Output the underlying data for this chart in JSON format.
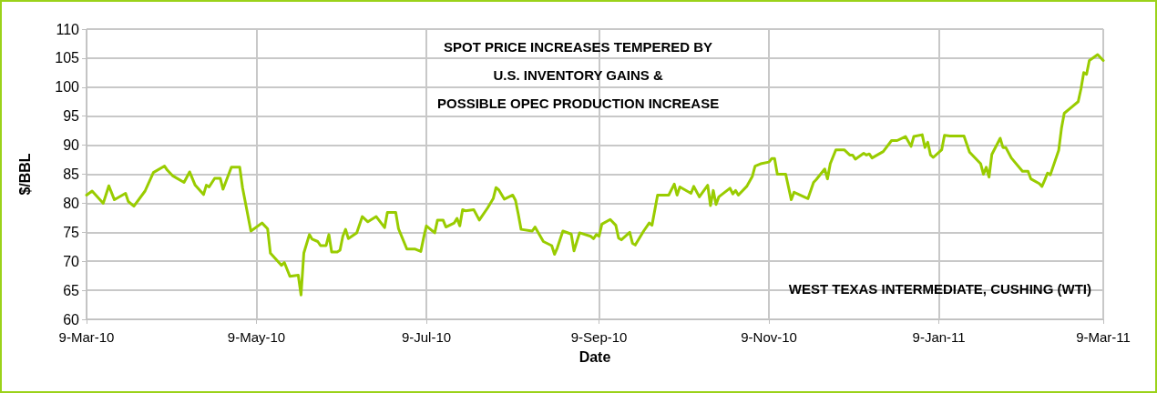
{
  "chart_data": {
    "type": "line",
    "title": "SPOT PRICE INCREASES TEMPERED BY\nU.S. INVENTORY GAINS &\nPOSSIBLE OPEC PRODUCTION INCREASE",
    "xlabel": "Date",
    "ylabel": "$/BBL",
    "annotations": [
      "WEST TEXAS INTERMEDIATE, CUSHING (WTI)"
    ],
    "xlim": [
      "2010-03-09",
      "2011-03-09"
    ],
    "xticks": [
      {
        "value": "2010-03-09",
        "label": "9-Mar-10"
      },
      {
        "value": "2010-05-09",
        "label": "9-May-10"
      },
      {
        "value": "2010-07-09",
        "label": "9-Jul-10"
      },
      {
        "value": "2010-09-09",
        "label": "9-Sep-10"
      },
      {
        "value": "2010-11-09",
        "label": "9-Nov-10"
      },
      {
        "value": "2011-01-09",
        "label": "9-Jan-11"
      },
      {
        "value": "2011-03-09",
        "label": "9-Mar-11"
      }
    ],
    "ylim": [
      60,
      110
    ],
    "yticks": [
      60,
      65,
      70,
      75,
      80,
      85,
      90,
      95,
      100,
      105,
      110
    ],
    "grid": true,
    "marker": "none",
    "line_style": "solid",
    "x": [
      "2010-03-09",
      "2010-03-11",
      "2010-03-15",
      "2010-03-17",
      "2010-03-19",
      "2010-03-23",
      "2010-03-24",
      "2010-03-26",
      "2010-03-30",
      "2010-04-02",
      "2010-04-06",
      "2010-04-07",
      "2010-04-09",
      "2010-04-13",
      "2010-04-15",
      "2010-04-17",
      "2010-04-20",
      "2010-04-21",
      "2010-04-22",
      "2010-04-24",
      "2010-04-26",
      "2010-04-27",
      "2010-04-30",
      "2010-05-03",
      "2010-05-04",
      "2010-05-07",
      "2010-05-11",
      "2010-05-13",
      "2010-05-14",
      "2010-05-18",
      "2010-05-19",
      "2010-05-21",
      "2010-05-24",
      "2010-05-25",
      "2010-05-26",
      "2010-05-28",
      "2010-05-29",
      "2010-05-31",
      "2010-06-01",
      "2010-06-03",
      "2010-06-04",
      "2010-06-05",
      "2010-06-07",
      "2010-06-08",
      "2010-06-09",
      "2010-06-10",
      "2010-06-11",
      "2010-06-14",
      "2010-06-16",
      "2010-06-18",
      "2010-06-21",
      "2010-06-24",
      "2010-06-25",
      "2010-06-28",
      "2010-06-29",
      "2010-07-02",
      "2010-07-05",
      "2010-07-07",
      "2010-07-08",
      "2010-07-09",
      "2010-07-12",
      "2010-07-13",
      "2010-07-15",
      "2010-07-16",
      "2010-07-19",
      "2010-07-20",
      "2010-07-21",
      "2010-07-22",
      "2010-07-23",
      "2010-07-26",
      "2010-07-28",
      "2010-07-31",
      "2010-08-02",
      "2010-08-03",
      "2010-08-04",
      "2010-08-06",
      "2010-08-09",
      "2010-08-10",
      "2010-08-11",
      "2010-08-12",
      "2010-08-16",
      "2010-08-17",
      "2010-08-20",
      "2010-08-23",
      "2010-08-24",
      "2010-08-25",
      "2010-08-27",
      "2010-08-30",
      "2010-08-31",
      "2010-09-02",
      "2010-09-06",
      "2010-09-07",
      "2010-09-08",
      "2010-09-09",
      "2010-09-10",
      "2010-09-13",
      "2010-09-15",
      "2010-09-16",
      "2010-09-17",
      "2010-09-20",
      "2010-09-21",
      "2010-09-22",
      "2010-09-25",
      "2010-09-27",
      "2010-09-28",
      "2010-09-30",
      "2010-10-04",
      "2010-10-06",
      "2010-10-07",
      "2010-10-08",
      "2010-10-12",
      "2010-10-13",
      "2010-10-15",
      "2010-10-18",
      "2010-10-19",
      "2010-10-20",
      "2010-10-21",
      "2010-10-22",
      "2010-10-26",
      "2010-10-27",
      "2010-10-28",
      "2010-10-29",
      "2010-11-01",
      "2010-11-03",
      "2010-11-04",
      "2010-11-06",
      "2010-11-09",
      "2010-11-10",
      "2010-11-11",
      "2010-11-12",
      "2010-11-15",
      "2010-11-17",
      "2010-11-18",
      "2010-11-23",
      "2010-11-25",
      "2010-11-26",
      "2010-11-29",
      "2010-11-30",
      "2010-12-01",
      "2010-12-03",
      "2010-12-06",
      "2010-12-08",
      "2010-12-09",
      "2010-12-10",
      "2010-12-13",
      "2010-12-14",
      "2010-12-15",
      "2010-12-16",
      "2010-12-20",
      "2010-12-23",
      "2010-12-25",
      "2010-12-28",
      "2010-12-30",
      "2010-12-31",
      "2011-01-03",
      "2011-01-04",
      "2011-01-05",
      "2011-01-06",
      "2011-01-07",
      "2011-01-10",
      "2011-01-11",
      "2011-01-13",
      "2011-01-18",
      "2011-01-20",
      "2011-01-24",
      "2011-01-25",
      "2011-01-26",
      "2011-01-27",
      "2011-01-28",
      "2011-01-31",
      "2011-02-01",
      "2011-02-02",
      "2011-02-04",
      "2011-02-08",
      "2011-02-10",
      "2011-02-11",
      "2011-02-14",
      "2011-02-15",
      "2011-02-16",
      "2011-02-17",
      "2011-02-18",
      "2011-02-21",
      "2011-02-22",
      "2011-02-23",
      "2011-02-26",
      "2011-02-28",
      "2011-03-01",
      "2011-03-02",
      "2011-03-03",
      "2011-03-04",
      "2011-03-07",
      "2011-03-09"
    ],
    "series": [
      {
        "color": "#99cc00",
        "values": [
          81.4,
          82.1,
          80.0,
          83.0,
          80.6,
          81.7,
          80.3,
          79.5,
          82.1,
          85.3,
          86.4,
          85.7,
          84.7,
          83.6,
          85.4,
          83.1,
          81.5,
          83.1,
          82.8,
          84.3,
          84.3,
          82.4,
          86.2,
          86.2,
          82.7,
          75.2,
          76.6,
          75.6,
          71.4,
          69.3,
          69.8,
          67.4,
          67.6,
          64.2,
          71.4,
          74.6,
          73.8,
          73.4,
          72.7,
          72.7,
          74.6,
          71.6,
          71.6,
          71.9,
          74.3,
          75.5,
          73.9,
          74.9,
          77.7,
          76.8,
          77.7,
          75.8,
          78.4,
          78.4,
          75.6,
          72.1,
          72.1,
          71.7,
          74.0,
          76.1,
          74.9,
          77.1,
          77.1,
          75.9,
          76.6,
          77.4,
          76.1,
          78.9,
          78.7,
          78.9,
          77.1,
          79.2,
          80.8,
          82.7,
          82.3,
          80.7,
          81.4,
          80.5,
          78.1,
          75.5,
          75.2,
          75.9,
          73.4,
          72.7,
          71.2,
          72.3,
          75.2,
          74.7,
          71.8,
          74.9,
          74.3,
          73.9,
          74.6,
          74.3,
          76.4,
          77.2,
          76.2,
          74.0,
          73.7,
          75.0,
          73.1,
          72.8,
          75.2,
          76.6,
          76.2,
          81.4,
          81.4,
          83.3,
          81.4,
          82.8,
          81.7,
          82.9,
          81.1,
          83.1,
          79.6,
          82.2,
          79.8,
          81.1,
          82.6,
          81.6,
          82.2,
          81.4,
          82.9,
          84.6,
          86.4,
          86.8,
          87.1,
          87.7,
          87.7,
          85.0,
          85.0,
          80.6,
          81.9,
          80.8,
          83.6,
          84.1,
          85.9,
          84.2,
          86.8,
          89.2,
          89.2,
          88.3,
          88.3,
          87.6,
          88.6,
          88.3,
          88.5,
          87.8,
          88.9,
          90.8,
          90.8,
          91.5,
          89.8,
          91.5,
          91.8,
          89.6,
          90.5,
          88.3,
          87.9,
          89.2,
          91.7,
          91.6,
          91.6,
          88.8,
          86.8,
          85.0,
          86.2,
          84.5,
          88.4,
          91.2,
          89.6,
          89.6,
          87.8,
          85.5,
          85.5,
          84.2,
          83.4,
          82.9,
          84.0,
          85.2,
          84.9,
          89.1,
          92.9,
          95.5,
          96.7,
          97.5,
          99.7,
          102.5,
          102.2,
          104.6,
          105.6,
          104.6
        ]
      }
    ]
  }
}
